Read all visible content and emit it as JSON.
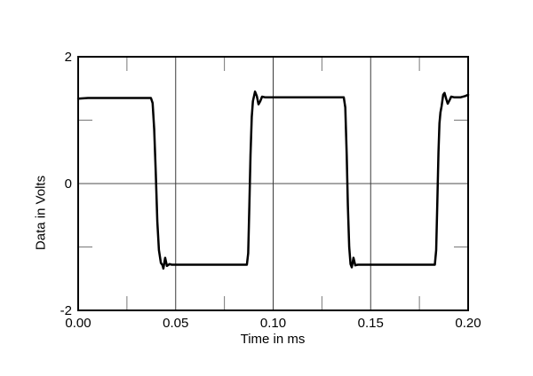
{
  "chart_data": {
    "type": "line",
    "title": "",
    "xlabel": "Time in ms",
    "ylabel": "Data in Volts",
    "xlim": [
      0,
      0.2
    ],
    "ylim": [
      -2,
      2
    ],
    "grid": "major vertical gridlines at 0.05/0.10/0.15 and horizontal zero line drawn inside frame; minor ticks point inward from all four frame edges",
    "legend": null,
    "x_ticks": [
      {
        "v": 0.0,
        "label": "0.00"
      },
      {
        "v": 0.05,
        "label": "0.05"
      },
      {
        "v": 0.1,
        "label": "0.10"
      },
      {
        "v": 0.15,
        "label": "0.15"
      },
      {
        "v": 0.2,
        "label": "0.20"
      }
    ],
    "y_ticks": [
      {
        "v": 2,
        "label": "2"
      },
      {
        "v": 0,
        "label": "0"
      },
      {
        "v": -2,
        "label": "-2"
      }
    ],
    "x_minor_ticks": [
      0.025,
      0.075,
      0.125,
      0.175
    ],
    "y_minor_ticks": [
      1,
      -1
    ],
    "x_gridlines": [
      0.05,
      0.1,
      0.15
    ],
    "y_gridlines": [
      0
    ],
    "series": [
      {
        "name": "square-wave-trace",
        "description": "~10.2 kHz square wave, high level ≈ +1.35 V, low level ≈ −1.28 V, with overshoot/undershoot ringing on each transition",
        "points": [
          [
            0.0,
            1.34
          ],
          [
            0.005,
            1.35
          ],
          [
            0.02,
            1.35
          ],
          [
            0.0373,
            1.35
          ],
          [
            0.0382,
            1.27
          ],
          [
            0.039,
            0.85
          ],
          [
            0.0398,
            0.15
          ],
          [
            0.0406,
            -0.6
          ],
          [
            0.0414,
            -1.05
          ],
          [
            0.0424,
            -1.25
          ],
          [
            0.0433,
            -1.29
          ],
          [
            0.0437,
            -1.34
          ],
          [
            0.0446,
            -1.17
          ],
          [
            0.0455,
            -1.3
          ],
          [
            0.0469,
            -1.27
          ],
          [
            0.048,
            -1.28
          ],
          [
            0.06,
            -1.28
          ],
          [
            0.075,
            -1.28
          ],
          [
            0.0865,
            -1.28
          ],
          [
            0.0872,
            -1.1
          ],
          [
            0.0878,
            -0.35
          ],
          [
            0.0884,
            0.45
          ],
          [
            0.089,
            1.05
          ],
          [
            0.0896,
            1.3
          ],
          [
            0.0907,
            1.45
          ],
          [
            0.0916,
            1.38
          ],
          [
            0.0925,
            1.25
          ],
          [
            0.0934,
            1.3
          ],
          [
            0.0943,
            1.37
          ],
          [
            0.096,
            1.36
          ],
          [
            0.11,
            1.36
          ],
          [
            0.125,
            1.36
          ],
          [
            0.1362,
            1.36
          ],
          [
            0.137,
            1.2
          ],
          [
            0.1377,
            0.45
          ],
          [
            0.1383,
            -0.35
          ],
          [
            0.139,
            -1.0
          ],
          [
            0.1397,
            -1.27
          ],
          [
            0.1403,
            -1.32
          ],
          [
            0.1412,
            -1.17
          ],
          [
            0.1421,
            -1.29
          ],
          [
            0.1434,
            -1.28
          ],
          [
            0.155,
            -1.28
          ],
          [
            0.17,
            -1.28
          ],
          [
            0.1829,
            -1.28
          ],
          [
            0.1836,
            -1.05
          ],
          [
            0.1842,
            -0.3
          ],
          [
            0.1848,
            0.5
          ],
          [
            0.1853,
            0.95
          ],
          [
            0.1858,
            1.12
          ],
          [
            0.1864,
            1.22
          ],
          [
            0.1872,
            1.4
          ],
          [
            0.1879,
            1.43
          ],
          [
            0.1888,
            1.33
          ],
          [
            0.1895,
            1.26
          ],
          [
            0.1904,
            1.31
          ],
          [
            0.1913,
            1.37
          ],
          [
            0.193,
            1.36
          ],
          [
            0.196,
            1.36
          ],
          [
            0.1985,
            1.38
          ],
          [
            0.2,
            1.4
          ]
        ]
      }
    ]
  },
  "colors": {
    "background": "#ffffff",
    "frame": "#000000",
    "trace": "#000000",
    "major_gridline": "#3c3c3c",
    "zero_line": "#888888",
    "minor_tick": "#777777",
    "text": "#000000"
  }
}
